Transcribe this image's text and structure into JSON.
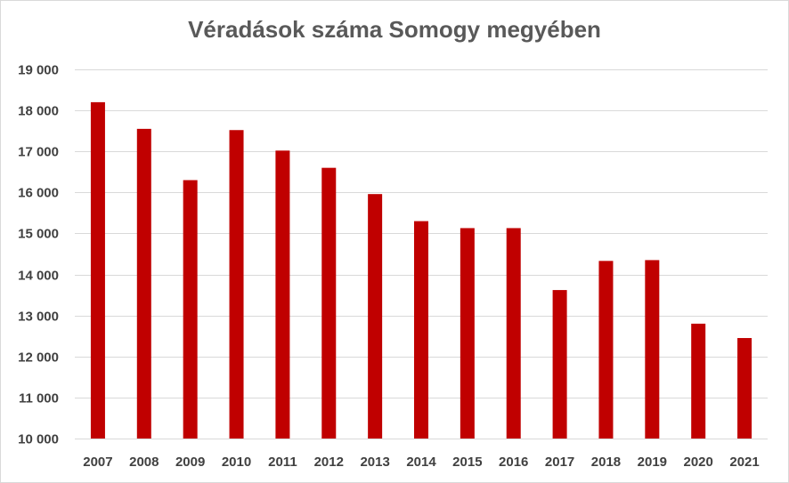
{
  "chart_data": {
    "type": "bar",
    "title": "Véradások száma Somogy megyében",
    "xlabel": "",
    "ylabel": "",
    "categories": [
      "2007",
      "2008",
      "2009",
      "2010",
      "2011",
      "2012",
      "2013",
      "2014",
      "2015",
      "2016",
      "2017",
      "2018",
      "2019",
      "2020",
      "2021"
    ],
    "values": [
      18200,
      17550,
      16300,
      17520,
      17020,
      16600,
      15960,
      15300,
      15130,
      15130,
      13620,
      14330,
      14350,
      12800,
      12450
    ],
    "ylim": [
      10000,
      19000
    ],
    "yticks": [
      10000,
      11000,
      12000,
      13000,
      14000,
      15000,
      16000,
      17000,
      18000,
      19000
    ],
    "ytick_labels": [
      "10 000",
      "11 000",
      "12 000",
      "13 000",
      "14 000",
      "15 000",
      "16 000",
      "17 000",
      "18 000",
      "19 000"
    ],
    "grid": true,
    "legend": "none",
    "bar_color": "#c00000",
    "grid_color": "#d9d9d9"
  }
}
